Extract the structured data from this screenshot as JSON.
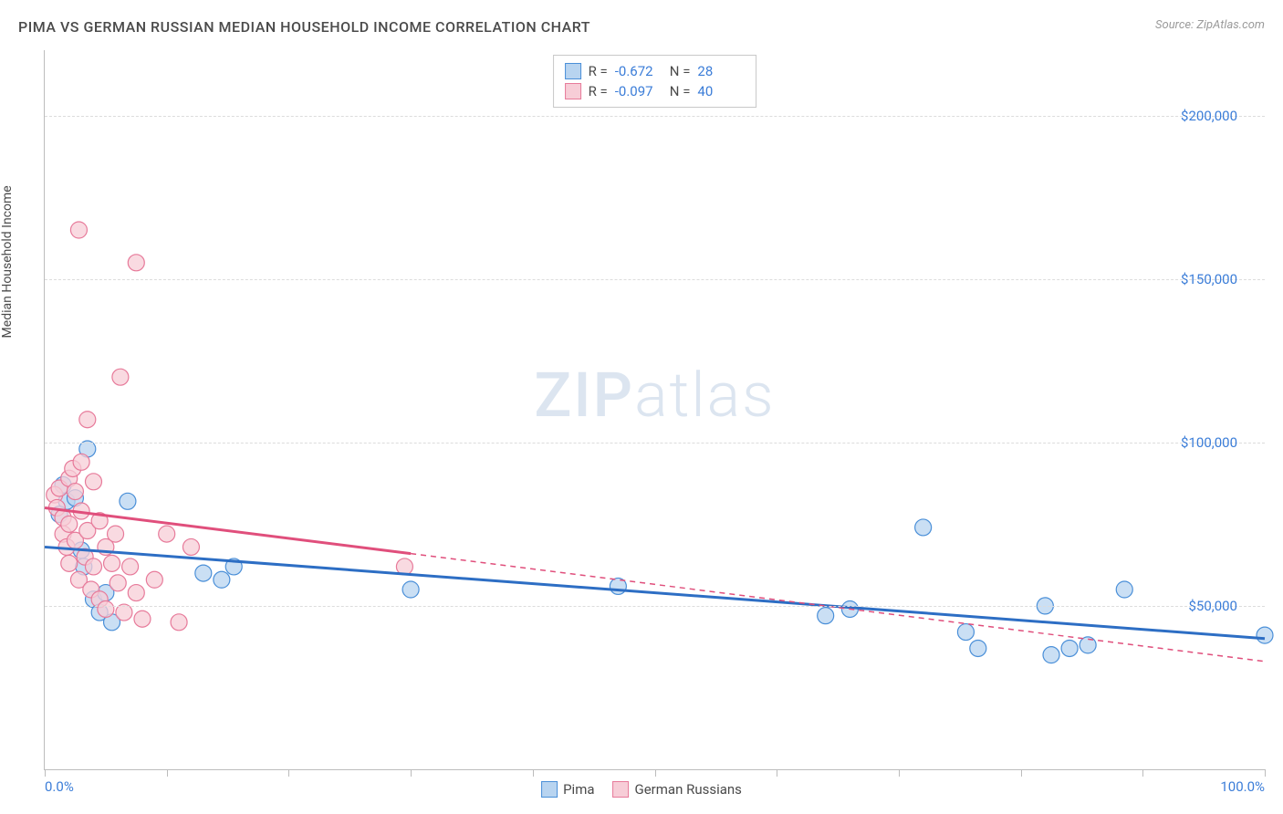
{
  "header": {
    "title": "PIMA VS GERMAN RUSSIAN MEDIAN HOUSEHOLD INCOME CORRELATION CHART",
    "source": "Source: ZipAtlas.com"
  },
  "watermark": {
    "bold": "ZIP",
    "light": "atlas"
  },
  "chart": {
    "type": "scatter",
    "y_axis_label": "Median Household Income",
    "x_axis": {
      "min": 0,
      "max": 100,
      "ticks_pct": [
        0,
        10,
        20,
        30,
        40,
        50,
        60,
        70,
        80,
        90,
        100
      ],
      "labels": [
        {
          "pct": 0,
          "text": "0.0%",
          "align": "left"
        },
        {
          "pct": 100,
          "text": "100.0%",
          "align": "right"
        }
      ]
    },
    "y_axis": {
      "min": 0,
      "max": 220000,
      "gridlines": [
        50000,
        100000,
        150000,
        200000
      ],
      "tick_labels": [
        {
          "value": 50000,
          "text": "$50,000"
        },
        {
          "value": 100000,
          "text": "$100,000"
        },
        {
          "value": 150000,
          "text": "$150,000"
        },
        {
          "value": 200000,
          "text": "$200,000"
        }
      ]
    },
    "series": [
      {
        "name": "Pima",
        "color_fill": "#b8d4f0",
        "color_stroke": "#4a8fd8",
        "line_color": "#2d6ec4",
        "marker_radius": 9,
        "r_label": "R =",
        "r_value": "-0.672",
        "n_label": "N =",
        "n_value": "28",
        "trend": {
          "x1": 0,
          "y1": 68000,
          "x2_solid": 100,
          "y2_solid": 40000,
          "x2_dash": 100,
          "y2_dash": 40000
        },
        "points": [
          {
            "x": 1.5,
            "y": 87000
          },
          {
            "x": 1.8,
            "y": 82000
          },
          {
            "x": 1.2,
            "y": 78000
          },
          {
            "x": 2.5,
            "y": 83000
          },
          {
            "x": 3.0,
            "y": 67000
          },
          {
            "x": 3.2,
            "y": 62000
          },
          {
            "x": 3.5,
            "y": 98000
          },
          {
            "x": 4.0,
            "y": 52000
          },
          {
            "x": 4.5,
            "y": 48000
          },
          {
            "x": 5.0,
            "y": 54000
          },
          {
            "x": 5.5,
            "y": 45000
          },
          {
            "x": 6.8,
            "y": 82000
          },
          {
            "x": 13.0,
            "y": 60000
          },
          {
            "x": 14.5,
            "y": 58000
          },
          {
            "x": 15.5,
            "y": 62000
          },
          {
            "x": 30.0,
            "y": 55000
          },
          {
            "x": 47.0,
            "y": 56000
          },
          {
            "x": 64.0,
            "y": 47000
          },
          {
            "x": 66.0,
            "y": 49000
          },
          {
            "x": 72.0,
            "y": 74000
          },
          {
            "x": 75.5,
            "y": 42000
          },
          {
            "x": 76.5,
            "y": 37000
          },
          {
            "x": 82.0,
            "y": 50000
          },
          {
            "x": 82.5,
            "y": 35000
          },
          {
            "x": 84.0,
            "y": 37000
          },
          {
            "x": 85.5,
            "y": 38000
          },
          {
            "x": 88.5,
            "y": 55000
          },
          {
            "x": 100.0,
            "y": 41000
          }
        ]
      },
      {
        "name": "German Russians",
        "color_fill": "#f7cdd7",
        "color_stroke": "#e77a9a",
        "line_color": "#e04f7c",
        "marker_radius": 9,
        "r_label": "R =",
        "r_value": "-0.097",
        "n_label": "N =",
        "n_value": "40",
        "trend": {
          "x1": 0,
          "y1": 80000,
          "x2_solid": 30,
          "y2_solid": 66000,
          "x2_dash": 100,
          "y2_dash": 33000
        },
        "points": [
          {
            "x": 0.8,
            "y": 84000
          },
          {
            "x": 1.0,
            "y": 80000
          },
          {
            "x": 1.2,
            "y": 86000
          },
          {
            "x": 1.5,
            "y": 77000
          },
          {
            "x": 1.5,
            "y": 72000
          },
          {
            "x": 1.8,
            "y": 68000
          },
          {
            "x": 2.0,
            "y": 89000
          },
          {
            "x": 2.0,
            "y": 75000
          },
          {
            "x": 2.0,
            "y": 63000
          },
          {
            "x": 2.3,
            "y": 92000
          },
          {
            "x": 2.5,
            "y": 85000
          },
          {
            "x": 2.5,
            "y": 70000
          },
          {
            "x": 2.8,
            "y": 58000
          },
          {
            "x": 3.0,
            "y": 94000
          },
          {
            "x": 3.0,
            "y": 79000
          },
          {
            "x": 3.3,
            "y": 65000
          },
          {
            "x": 3.5,
            "y": 107000
          },
          {
            "x": 3.5,
            "y": 73000
          },
          {
            "x": 3.8,
            "y": 55000
          },
          {
            "x": 4.0,
            "y": 88000
          },
          {
            "x": 4.0,
            "y": 62000
          },
          {
            "x": 4.5,
            "y": 52000
          },
          {
            "x": 4.5,
            "y": 76000
          },
          {
            "x": 5.0,
            "y": 68000
          },
          {
            "x": 5.0,
            "y": 49000
          },
          {
            "x": 5.5,
            "y": 63000
          },
          {
            "x": 5.8,
            "y": 72000
          },
          {
            "x": 6.0,
            "y": 57000
          },
          {
            "x": 6.2,
            "y": 120000
          },
          {
            "x": 6.5,
            "y": 48000
          },
          {
            "x": 7.0,
            "y": 62000
          },
          {
            "x": 7.5,
            "y": 54000
          },
          {
            "x": 7.5,
            "y": 155000
          },
          {
            "x": 2.8,
            "y": 165000
          },
          {
            "x": 8.0,
            "y": 46000
          },
          {
            "x": 9.0,
            "y": 58000
          },
          {
            "x": 10.0,
            "y": 72000
          },
          {
            "x": 11.0,
            "y": 45000
          },
          {
            "x": 12.0,
            "y": 68000
          },
          {
            "x": 29.5,
            "y": 62000
          }
        ]
      }
    ]
  },
  "legend_footer": {
    "items": [
      {
        "name": "Pima",
        "fill": "#b8d4f0",
        "stroke": "#4a8fd8"
      },
      {
        "name": "German Russians",
        "fill": "#f7cdd7",
        "stroke": "#e77a9a"
      }
    ]
  }
}
